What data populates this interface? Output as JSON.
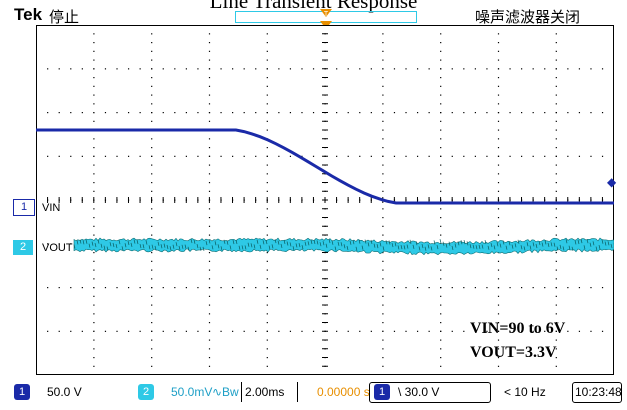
{
  "caption": "Line Transient Response",
  "topbar": {
    "brand": "Tek",
    "status": "停止",
    "noise_filter": "噪声滤波器关闭"
  },
  "channels": {
    "ch1": {
      "marker": "1",
      "label": "VIN",
      "color": "#1a2aa8"
    },
    "ch2": {
      "marker": "2",
      "label": "VOUT",
      "color": "#2ec9e6"
    }
  },
  "annotation": {
    "vin_text": "VIN=90 to 6V",
    "vout_text": "VOUT=3.3V"
  },
  "bottombar": {
    "ch1_badge": "1",
    "ch1_scale": "50.0 V",
    "ch2_badge": "2",
    "ch2_scale": "50.0mV",
    "ch2_coupling": "∿Bw",
    "timebase": "2.00ms",
    "position": "0.00000 s",
    "trig_badge": "1",
    "trig_slope_level": "\\ 30.0 V",
    "trig_freq": "< 10 Hz",
    "clock": "10:23:48"
  },
  "colors": {
    "ch1": "#1a2aa8",
    "ch2": "#2ec9e6",
    "trigger_marker": "#e88f00",
    "grid": "#000000"
  }
}
